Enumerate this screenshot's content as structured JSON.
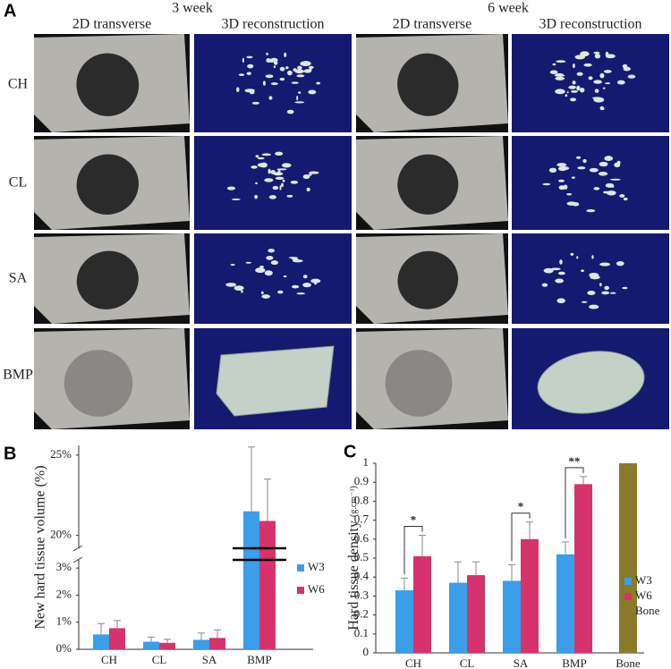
{
  "panel_a": {
    "label": "A",
    "groups": [
      {
        "title": "3 week",
        "columns": [
          "2D transverse",
          "3D reconstruction"
        ]
      },
      {
        "title": "6 week",
        "columns": [
          "2D transverse",
          "3D reconstruction"
        ]
      }
    ],
    "rows": [
      "CH",
      "CL",
      "SA",
      "BMP"
    ]
  },
  "chart_data": [
    {
      "type": "bar",
      "panel_label": "B",
      "y_label": "New hard tissue volume (%)",
      "categories": [
        "CH",
        "CL",
        "SA",
        "BMP"
      ],
      "series": [
        {
          "name": "W3",
          "color": "#3a9ee8",
          "values": [
            0.55,
            0.28,
            0.35,
            21.5
          ],
          "errors": [
            0.4,
            0.17,
            0.25,
            4.0
          ]
        },
        {
          "name": "W6",
          "color": "#d6336c",
          "values": [
            0.78,
            0.24,
            0.42,
            20.9
          ],
          "errors": [
            0.28,
            0.13,
            0.3,
            2.6
          ]
        }
      ],
      "ylim": [
        0,
        25.6
      ],
      "y_break": [
        3.3,
        19.2
      ],
      "yticks": [
        {
          "value": 0,
          "label": "0%"
        },
        {
          "value": 1,
          "label": "1%"
        },
        {
          "value": 2,
          "label": "2%"
        },
        {
          "value": 3,
          "label": "3%"
        },
        {
          "value": 20,
          "label": "20%"
        },
        {
          "value": 25,
          "label": "25%"
        }
      ],
      "grid": false,
      "legend": "right"
    },
    {
      "type": "bar",
      "panel_label": "C",
      "y_label": "Hard tissue density",
      "y_unit": "(g.cm⁻³)",
      "categories": [
        "CH",
        "CL",
        "SA",
        "BMP",
        "Bone"
      ],
      "series": [
        {
          "name": "W3",
          "color": "#3a9ee8",
          "values": [
            0.33,
            0.37,
            0.38,
            0.52,
            null
          ],
          "errors": [
            0.065,
            0.11,
            0.085,
            0.065,
            null
          ]
        },
        {
          "name": "W6",
          "color": "#d6336c",
          "values": [
            0.51,
            0.41,
            0.6,
            0.89,
            null
          ],
          "errors": [
            0.11,
            0.07,
            0.09,
            0.04,
            null
          ]
        },
        {
          "name": "Bone",
          "color": "#8b7a2a",
          "values": [
            null,
            null,
            null,
            null,
            1
          ],
          "errors": [
            null,
            null,
            null,
            null,
            null
          ]
        }
      ],
      "ylim": [
        0,
        1
      ],
      "yticks": [
        0,
        0.1,
        0.2,
        0.3,
        0.4,
        0.5,
        0.6,
        0.7,
        0.8,
        0.9,
        1
      ],
      "significance": [
        {
          "category": "CH",
          "label": "*"
        },
        {
          "category": "SA",
          "label": "*"
        },
        {
          "category": "BMP",
          "label": "**"
        }
      ],
      "grid": false,
      "legend": "right"
    }
  ]
}
